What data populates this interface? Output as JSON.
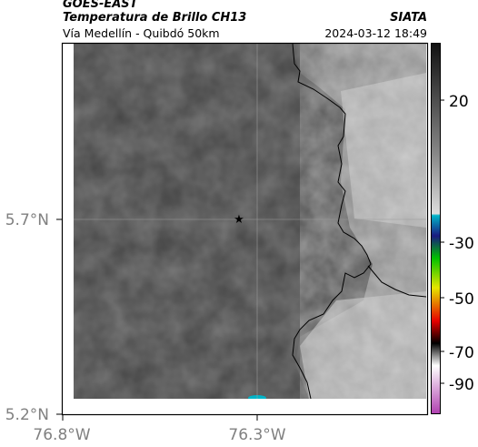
{
  "header": {
    "satellite": "GOES-EAST",
    "product": "Temperatura de Brillo CH13",
    "location": "Vía Medellín - Quibdó 50km",
    "brand": "SIATA",
    "timestamp": "2024-03-12 18:49"
  },
  "map": {
    "y_ticks": [
      "5.7°N",
      "5.2°N"
    ],
    "x_ticks": [
      "76.8°W",
      "76.3°W"
    ],
    "marker_icon": "star-icon"
  },
  "colorbar": {
    "labels": [
      "20",
      "-30",
      "-50",
      "-70",
      "-90"
    ],
    "palette": [
      "#111111",
      "#888888",
      "#dddddd",
      "#00b4c8",
      "#1a1a80",
      "#00c000",
      "#e6e600",
      "#e60000",
      "#000000",
      "#ffffff",
      "#b040b0"
    ]
  }
}
